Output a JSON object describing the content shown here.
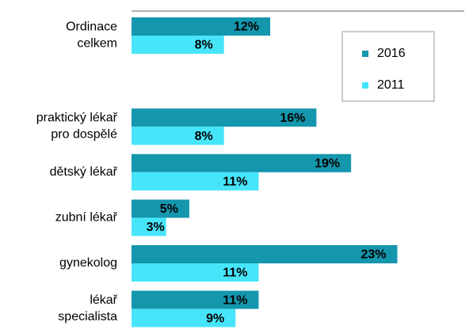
{
  "chart_data": {
    "type": "bar",
    "orientation": "horizontal",
    "categories": [
      "Ordinace\ncelkem",
      null,
      "praktický lékař\npro dospělé",
      "dětský lékař",
      "zubní lékař",
      "gynekolog",
      "lékař\nspecialista"
    ],
    "series": [
      {
        "name": "2016",
        "color": "#1496ad",
        "values": [
          12,
          null,
          16,
          19,
          5,
          23,
          11
        ],
        "value_labels": [
          "12%",
          null,
          "16%",
          "19%",
          "5%",
          "23%",
          "11%"
        ]
      },
      {
        "name": "2011",
        "color": "#47e5fa",
        "values": [
          8,
          null,
          8,
          11,
          3,
          11,
          9
        ],
        "value_labels": [
          "8%",
          null,
          "8%",
          "11%",
          "3%",
          "11%",
          "9%"
        ]
      }
    ],
    "xlim": [
      0,
      29
    ],
    "legend": "upper right"
  }
}
